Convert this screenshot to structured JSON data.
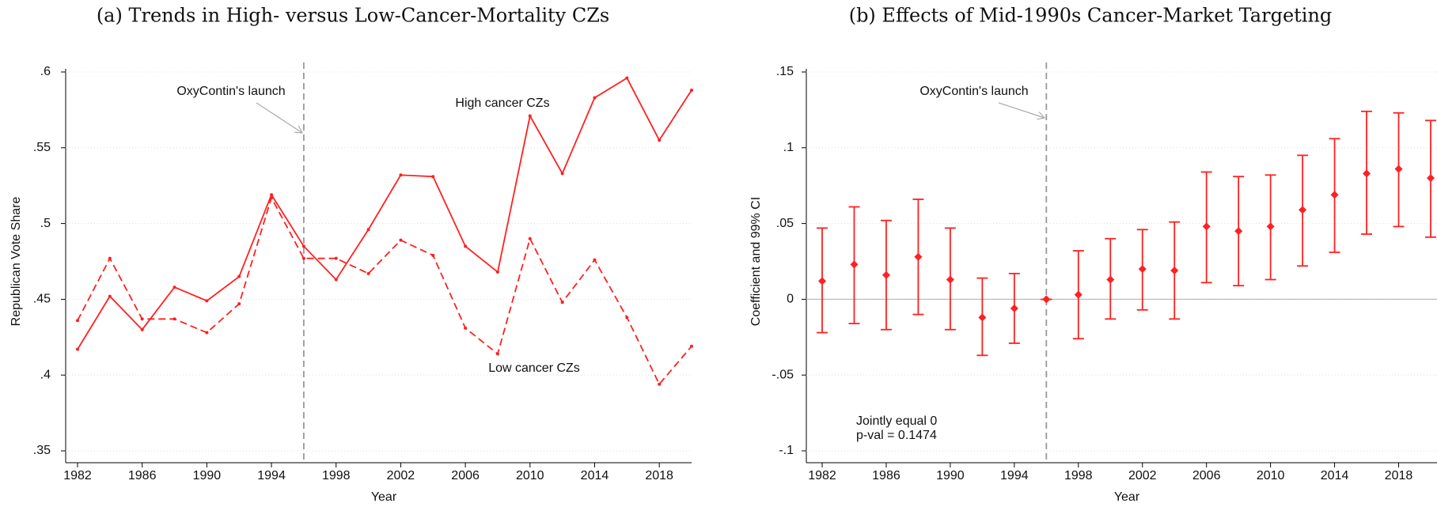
{
  "chart_data": [
    {
      "type": "line",
      "title": "(a) Trends in High- versus Low-Cancer-Mortality CZs",
      "x_label": "Year",
      "y_label": "Republican Vote Share",
      "x": [
        1982,
        1984,
        1986,
        1988,
        1990,
        1992,
        1994,
        1996,
        1998,
        2000,
        2002,
        2004,
        2006,
        2008,
        2010,
        2012,
        2014,
        2016,
        2018,
        2020
      ],
      "series": [
        {
          "name": "High cancer CZs",
          "color": "#ff2020",
          "dash": "solid",
          "values": [
            0.417,
            0.452,
            0.43,
            0.458,
            0.449,
            0.465,
            0.519,
            0.485,
            0.463,
            0.496,
            0.532,
            0.531,
            0.485,
            0.468,
            0.571,
            0.533,
            0.583,
            0.596,
            0.555,
            0.588
          ]
        },
        {
          "name": "Low cancer  CZs",
          "color": "#ff2020",
          "dash": "dashed",
          "values": [
            0.436,
            0.477,
            0.437,
            0.437,
            0.428,
            0.447,
            0.517,
            0.477,
            0.477,
            0.467,
            0.489,
            0.479,
            0.431,
            0.414,
            0.49,
            0.448,
            0.476,
            0.438,
            0.394,
            0.419
          ]
        }
      ],
      "xlim": [
        1982,
        2020
      ],
      "xticks": [
        1982,
        1986,
        1990,
        1994,
        1998,
        2002,
        2006,
        2010,
        2014,
        2018
      ],
      "ylim": [
        0.35,
        0.6
      ],
      "yticks": [
        {
          "value": 0.35,
          "label": ".35"
        },
        {
          "value": 0.4,
          "label": ".4"
        },
        {
          "value": 0.45,
          "label": ".45"
        },
        {
          "value": 0.5,
          "label": ".5"
        },
        {
          "value": 0.55,
          "label": ".55"
        },
        {
          "value": 0.6,
          "label": ".6"
        }
      ],
      "grid": true,
      "vline": 1996,
      "annotations": [
        "OxyContin's launch"
      ]
    },
    {
      "type": "errorbar",
      "title": "(b) Effects of Mid-1990s Cancer-Market Targeting",
      "x_label": "Year",
      "y_label": "Coefficient and 99% CI",
      "x": [
        1982,
        1984,
        1986,
        1988,
        1990,
        1992,
        1994,
        1996,
        1998,
        2000,
        2002,
        2004,
        2006,
        2008,
        2010,
        2012,
        2014,
        2016,
        2018,
        2020
      ],
      "color": "#ff2020",
      "values": [
        0.012,
        0.023,
        0.016,
        0.028,
        0.013,
        -0.012,
        -0.006,
        0,
        0.003,
        0.013,
        0.02,
        0.019,
        0.048,
        0.045,
        0.048,
        0.059,
        0.069,
        0.083,
        0.086,
        0.08
      ],
      "lower": [
        -0.022,
        -0.016,
        -0.02,
        -0.01,
        -0.02,
        -0.037,
        -0.029,
        0,
        -0.026,
        -0.013,
        -0.007,
        -0.013,
        0.011,
        0.009,
        0.013,
        0.022,
        0.031,
        0.043,
        0.048,
        0.041
      ],
      "upper": [
        0.047,
        0.061,
        0.052,
        0.066,
        0.047,
        0.014,
        0.017,
        0,
        0.032,
        0.04,
        0.046,
        0.051,
        0.084,
        0.081,
        0.082,
        0.095,
        0.106,
        0.124,
        0.123,
        0.118
      ],
      "xlim": [
        1982,
        2020
      ],
      "xticks": [
        1982,
        1986,
        1990,
        1994,
        1998,
        2002,
        2006,
        2010,
        2014,
        2018
      ],
      "ylim": [
        -0.1,
        0.15
      ],
      "yticks": [
        {
          "value": -0.1,
          "label": "-.1"
        },
        {
          "value": -0.05,
          "label": "-.05"
        },
        0,
        {
          "value": 0.05,
          "label": ".05"
        },
        {
          "value": 0.1,
          "label": ".1"
        },
        {
          "value": 0.15,
          "label": ".15"
        }
      ],
      "grid": true,
      "vline": 1996,
      "hline": 0,
      "annotations": [
        "OxyContin's launch",
        "Jointly equal 0",
        "p-val = 0.1474"
      ]
    }
  ]
}
